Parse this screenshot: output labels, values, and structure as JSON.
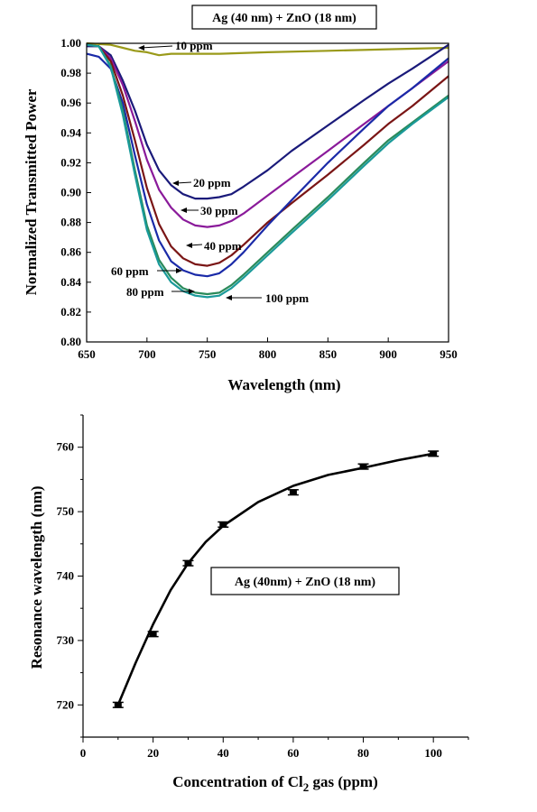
{
  "chart_data": [
    {
      "type": "line",
      "title": "Ag (40 nm) + ZnO (18 nm)",
      "xlabel": "Wavelength (nm)",
      "ylabel": "Normalized Transmitted Power",
      "xlim": [
        650,
        950
      ],
      "ylim": [
        0.8,
        1.0
      ],
      "xticks": [
        "650",
        "700",
        "750",
        "800",
        "850",
        "900",
        "950"
      ],
      "yticks": [
        "0.80",
        "0.82",
        "0.84",
        "0.86",
        "0.88",
        "0.90",
        "0.92",
        "0.94",
        "0.96",
        "0.98",
        "1.00"
      ],
      "grid": false,
      "series": [
        {
          "name": "10 ppm",
          "color": "#9a9a1a",
          "x": [
            650,
            670,
            680,
            690,
            700,
            710,
            720,
            740,
            760,
            800,
            850,
            900,
            950
          ],
          "y": [
            1.0,
            0.999,
            0.997,
            0.995,
            0.994,
            0.992,
            0.993,
            0.993,
            0.993,
            0.994,
            0.995,
            0.996,
            0.997
          ]
        },
        {
          "name": "20 ppm",
          "color": "#1a1a7a",
          "x": [
            650,
            660,
            670,
            680,
            690,
            700,
            710,
            720,
            730,
            740,
            750,
            760,
            770,
            780,
            800,
            820,
            850,
            880,
            900,
            920,
            950
          ],
          "y": [
            0.998,
            0.998,
            0.992,
            0.975,
            0.955,
            0.932,
            0.915,
            0.905,
            0.899,
            0.896,
            0.896,
            0.897,
            0.899,
            0.904,
            0.915,
            0.928,
            0.945,
            0.962,
            0.973,
            0.983,
            0.999
          ]
        },
        {
          "name": "30 ppm",
          "color": "#8a1a9a",
          "x": [
            650,
            660,
            670,
            680,
            690,
            700,
            710,
            720,
            730,
            740,
            750,
            760,
            770,
            780,
            800,
            820,
            850,
            880,
            900,
            920,
            950
          ],
          "y": [
            0.999,
            0.998,
            0.99,
            0.972,
            0.948,
            0.922,
            0.902,
            0.89,
            0.882,
            0.878,
            0.877,
            0.878,
            0.881,
            0.886,
            0.898,
            0.91,
            0.928,
            0.946,
            0.958,
            0.97,
            0.988
          ]
        },
        {
          "name": "40 ppm",
          "color": "#7a1515",
          "x": [
            650,
            660,
            670,
            680,
            690,
            700,
            710,
            720,
            730,
            740,
            750,
            760,
            770,
            780,
            800,
            820,
            850,
            880,
            900,
            920,
            950
          ],
          "y": [
            0.999,
            0.998,
            0.988,
            0.965,
            0.935,
            0.903,
            0.879,
            0.864,
            0.856,
            0.852,
            0.851,
            0.853,
            0.858,
            0.865,
            0.88,
            0.893,
            0.912,
            0.932,
            0.946,
            0.958,
            0.978
          ]
        },
        {
          "name": "60 ppm",
          "color": "#1a2aa8",
          "x": [
            650,
            660,
            670,
            680,
            690,
            700,
            710,
            720,
            730,
            740,
            750,
            760,
            770,
            780,
            800,
            820,
            850,
            880,
            900,
            920,
            950
          ],
          "y": [
            0.993,
            0.991,
            0.983,
            0.96,
            0.925,
            0.892,
            0.868,
            0.854,
            0.848,
            0.845,
            0.844,
            0.846,
            0.852,
            0.86,
            0.878,
            0.895,
            0.92,
            0.943,
            0.958,
            0.97,
            0.99
          ]
        },
        {
          "name": "80 ppm",
          "color": "#2a8a5a",
          "x": [
            650,
            660,
            670,
            680,
            690,
            700,
            710,
            720,
            730,
            740,
            750,
            760,
            770,
            780,
            800,
            820,
            850,
            880,
            900,
            920,
            950
          ],
          "y": [
            0.999,
            0.998,
            0.985,
            0.955,
            0.915,
            0.878,
            0.855,
            0.843,
            0.836,
            0.833,
            0.832,
            0.833,
            0.838,
            0.845,
            0.86,
            0.875,
            0.897,
            0.92,
            0.935,
            0.947,
            0.965
          ]
        },
        {
          "name": "100 ppm",
          "color": "#1a9a9a",
          "x": [
            650,
            660,
            670,
            680,
            690,
            700,
            710,
            720,
            730,
            740,
            750,
            760,
            770,
            780,
            800,
            820,
            850,
            880,
            900,
            920,
            950
          ],
          "y": [
            0.999,
            0.998,
            0.984,
            0.952,
            0.912,
            0.875,
            0.852,
            0.84,
            0.834,
            0.831,
            0.83,
            0.831,
            0.836,
            0.843,
            0.858,
            0.873,
            0.895,
            0.918,
            0.933,
            0.946,
            0.964
          ]
        }
      ]
    },
    {
      "type": "scatter",
      "title": "Ag (40nm) + ZnO (18 nm)",
      "xlabel": "Concentration of Cl",
      "xlabel_sub": "2",
      "xlabel_suffix": " gas (ppm)",
      "ylabel": "Resonance wavelength (nm)",
      "xlim": [
        0,
        110
      ],
      "ylim": [
        715,
        765
      ],
      "xticks": [
        "0",
        "20",
        "40",
        "60",
        "80",
        "100"
      ],
      "yticks": [
        "720",
        "730",
        "740",
        "750",
        "760"
      ],
      "grid": false,
      "x": [
        10,
        20,
        30,
        40,
        60,
        80,
        100
      ],
      "y": [
        720,
        731,
        742,
        748,
        753,
        757,
        759
      ],
      "error": [
        0.4,
        0.4,
        0.4,
        0.4,
        0.4,
        0.4,
        0.4
      ],
      "fit_x": [
        10,
        15,
        20,
        25,
        30,
        35,
        40,
        50,
        60,
        70,
        80,
        90,
        100
      ],
      "fit_y": [
        720,
        726.5,
        732.5,
        737.8,
        742,
        745.3,
        747.8,
        751.5,
        754,
        755.7,
        756.8,
        758,
        759
      ]
    }
  ]
}
